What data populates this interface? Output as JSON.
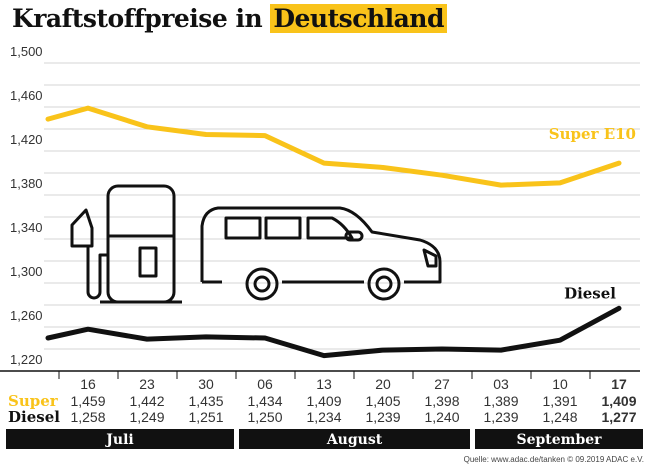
{
  "title": {
    "part1": "Kraftstoffpreise in ",
    "part2": "Deutschland"
  },
  "colors": {
    "super": "#f9c31a",
    "diesel": "#111111",
    "highlight": "#f9c31a",
    "month_bar": "#111111"
  },
  "chart_data": {
    "type": "line",
    "title": "Kraftstoffpreise in Deutschland",
    "ylim": [
      1.22,
      1.5
    ],
    "yticks": [
      "1,500",
      "1,460",
      "1,420",
      "1,380",
      "1,340",
      "1,300",
      "1,260",
      "1,220"
    ],
    "ytick_values": [
      1.5,
      1.46,
      1.42,
      1.38,
      1.34,
      1.3,
      1.26,
      1.22
    ],
    "grid": true,
    "categories": [
      "16",
      "23",
      "30",
      "06",
      "13",
      "20",
      "27",
      "03",
      "10",
      "17"
    ],
    "months": [
      {
        "label": "Juli",
        "span": 3
      },
      {
        "label": "August",
        "span": 4
      },
      {
        "label": "September",
        "span": 3
      }
    ],
    "series": [
      {
        "name": "Super E10",
        "row_label": "Super",
        "lead_value": 1.449,
        "values": [
          1.459,
          1.442,
          1.435,
          1.434,
          1.409,
          1.405,
          1.398,
          1.389,
          1.391,
          1.409
        ],
        "labels": [
          "1,459",
          "1,442",
          "1,435",
          "1,434",
          "1,409",
          "1,405",
          "1,398",
          "1,389",
          "1,391",
          "1,409"
        ]
      },
      {
        "name": "Diesel",
        "row_label": "Diesel",
        "lead_value": 1.25,
        "values": [
          1.258,
          1.249,
          1.251,
          1.25,
          1.234,
          1.239,
          1.24,
          1.239,
          1.248,
          1.277
        ],
        "labels": [
          "1,258",
          "1,249",
          "1,251",
          "1,250",
          "1,234",
          "1,239",
          "1,240",
          "1,239",
          "1,248",
          "1,277"
        ]
      }
    ]
  },
  "source": "Quelle: www.adac.de/tanken   © 09.2019  ADAC e.V."
}
